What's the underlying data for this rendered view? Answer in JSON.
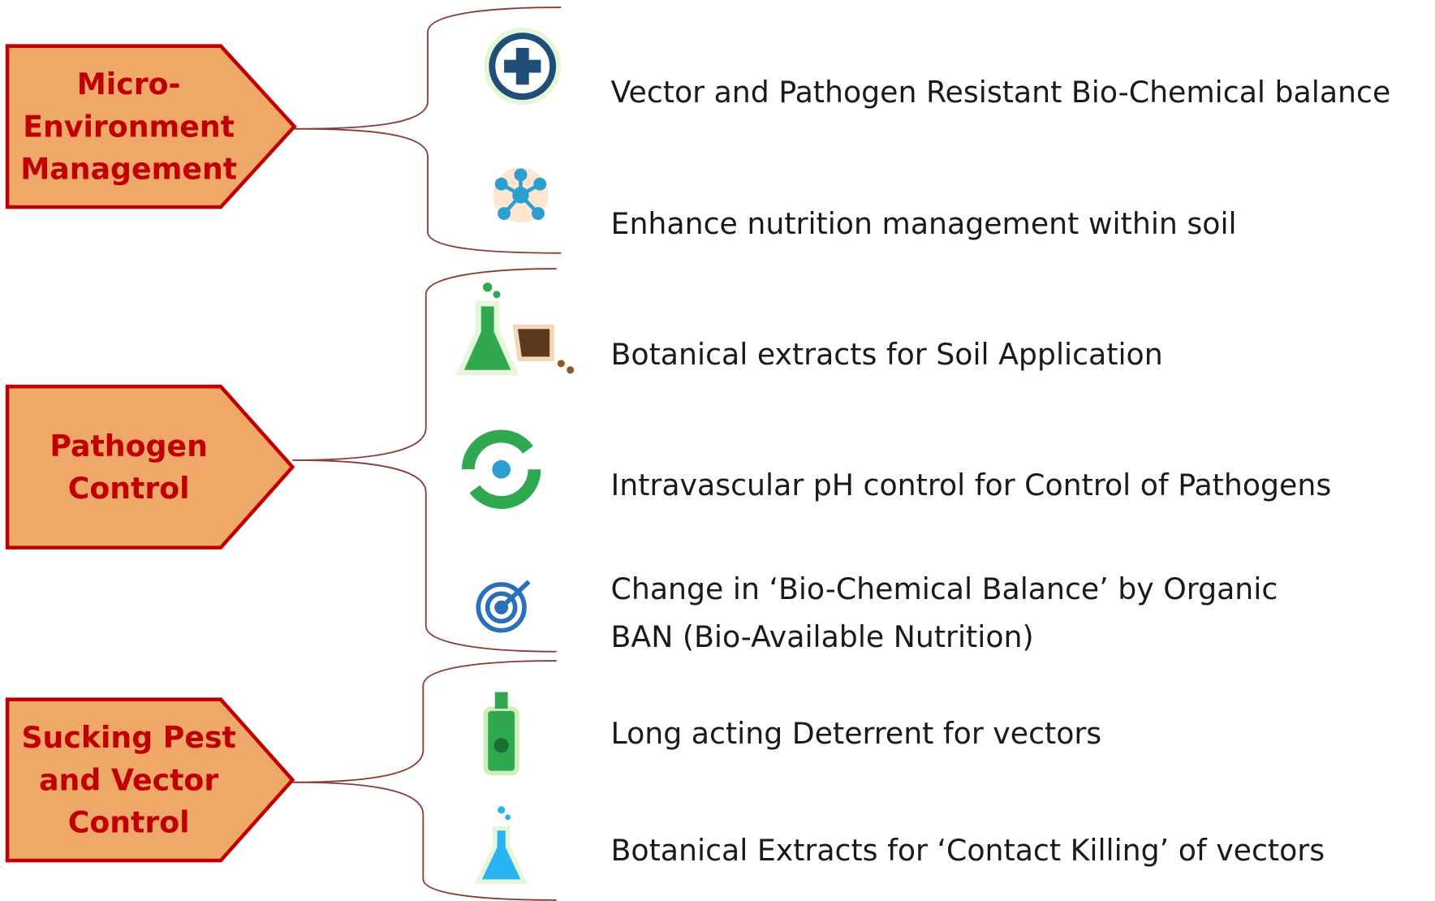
{
  "groups": [
    {
      "title_lines": [
        "Micro-",
        "Environment",
        "Management"
      ],
      "items": [
        {
          "lines": [
            "Vector and Pathogen Resistant Bio-Chemical balance"
          ]
        },
        {
          "lines": [
            "Enhance nutrition  management within soil"
          ]
        }
      ]
    },
    {
      "title_lines": [
        "Pathogen",
        "Control"
      ],
      "items": [
        {
          "lines": [
            "Botanical extracts for Soil Application"
          ]
        },
        {
          "lines": [
            "Intravascular pH control for Control of Pathogens"
          ]
        },
        {
          "lines": [
            "Change in ‘Bio-Chemical Balance’ by Organic",
            "BAN (Bio-Available Nutrition)"
          ]
        }
      ]
    },
    {
      "title_lines": [
        "Sucking Pest",
        "and Vector",
        "Control"
      ],
      "items": [
        {
          "lines": [
            "Long acting Deterrent for vectors"
          ]
        },
        {
          "lines": [
            "Botanical Extracts for ‘Contact Killing’ of  vectors"
          ]
        }
      ]
    }
  ]
}
